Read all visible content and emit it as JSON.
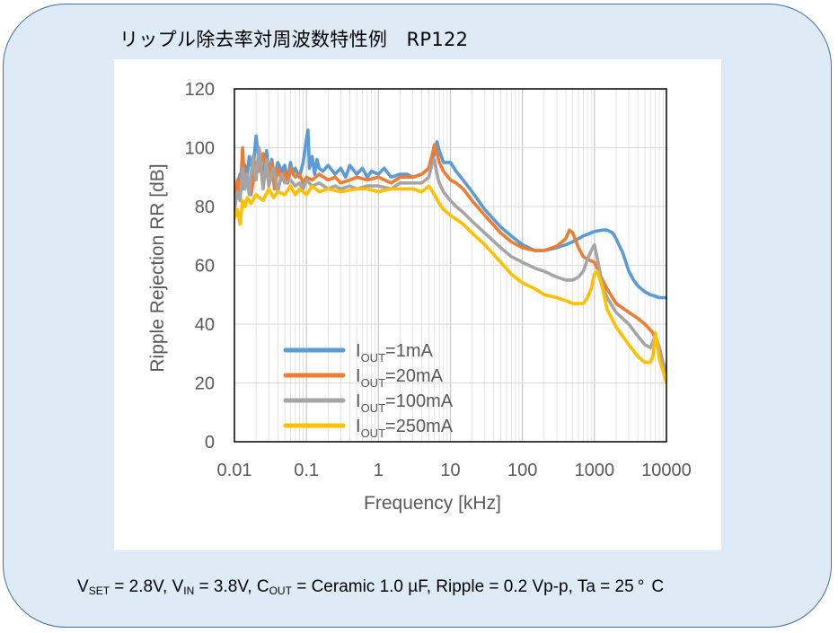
{
  "title": "リップル除去率対周波数特性例　RP122",
  "conditions": {
    "vset_main": "V",
    "vset_sub": "SET",
    "vset_val": " = 2.8V, ",
    "vin_main": "V",
    "vin_sub": "IN",
    "vin_val": " = 3.8V, ",
    "cout_main": "C",
    "cout_sub": "OUT",
    "cout_val": " = Ceramic 1.0 µF, Ripple = 0.2 Vp-p, Ta = 25",
    "deg": "°",
    "unit": "C"
  },
  "chart_data": {
    "type": "line",
    "xlabel": "Frequency [kHz]",
    "ylabel": "Ripple Rejection RR [dB]",
    "x_scale": "log",
    "xlim": [
      0.01,
      10000
    ],
    "ylim": [
      0,
      120
    ],
    "x_ticks": [
      0.01,
      0.1,
      1,
      10,
      100,
      1000,
      10000
    ],
    "x_tick_labels": [
      "0.01",
      "0.1",
      "1",
      "10",
      "100",
      "1000",
      "10000"
    ],
    "y_ticks": [
      0,
      20,
      40,
      60,
      80,
      100,
      120
    ],
    "y_tick_labels": [
      "0",
      "20",
      "40",
      "60",
      "80",
      "100",
      "120"
    ],
    "grid": true,
    "legend_position": "bottom-left",
    "series": [
      {
        "legend_main": "I",
        "legend_sub": "OUT",
        "legend_val": "=1mA",
        "color": "#5b9bd5",
        "x": [
          0.01,
          0.011,
          0.012,
          0.013,
          0.014,
          0.015,
          0.016,
          0.018,
          0.02,
          0.022,
          0.025,
          0.028,
          0.03,
          0.033,
          0.036,
          0.04,
          0.045,
          0.05,
          0.055,
          0.06,
          0.065,
          0.07,
          0.08,
          0.09,
          0.1,
          0.105,
          0.11,
          0.12,
          0.13,
          0.14,
          0.15,
          0.17,
          0.2,
          0.25,
          0.3,
          0.35,
          0.4,
          0.5,
          0.6,
          0.7,
          0.8,
          1,
          1.2,
          1.5,
          2,
          2.5,
          3,
          4,
          5,
          6,
          6.5,
          7,
          8,
          10,
          12,
          15,
          20,
          30,
          50,
          70,
          100,
          150,
          200,
          300,
          400,
          500,
          700,
          1000,
          1300,
          1500,
          1800,
          2000,
          2500,
          3000,
          3500,
          4000,
          5000,
          6000,
          7000,
          8000,
          10000
        ],
        "y": [
          82,
          88,
          91,
          86,
          94,
          90,
          97,
          92,
          104,
          95,
          92,
          99,
          91,
          96,
          90,
          95,
          92,
          94,
          89,
          95,
          91,
          93,
          90,
          95,
          103,
          106,
          93,
          97,
          91,
          96,
          93,
          92,
          94,
          91,
          93,
          90,
          94,
          91,
          93,
          90,
          92,
          91,
          93,
          90,
          91,
          91,
          90,
          91,
          93,
          98,
          102,
          99,
          95,
          95,
          92,
          89,
          85,
          79,
          73,
          70,
          67,
          65,
          65,
          66,
          67,
          68,
          70,
          71.5,
          72,
          72,
          71,
          69,
          64,
          58,
          55,
          53,
          51,
          50,
          49.5,
          49,
          49
        ]
      },
      {
        "legend_main": "I",
        "legend_sub": "OUT",
        "legend_val": "=20mA",
        "color": "#ed7d31",
        "x": [
          0.01,
          0.011,
          0.012,
          0.013,
          0.014,
          0.015,
          0.017,
          0.02,
          0.022,
          0.025,
          0.03,
          0.033,
          0.036,
          0.04,
          0.045,
          0.05,
          0.055,
          0.06,
          0.07,
          0.08,
          0.09,
          0.1,
          0.12,
          0.15,
          0.2,
          0.25,
          0.3,
          0.4,
          0.5,
          0.7,
          1,
          1.5,
          2,
          3,
          4,
          5,
          5.5,
          6,
          6.5,
          7,
          8,
          10,
          12,
          15,
          20,
          30,
          50,
          70,
          100,
          150,
          200,
          300,
          400,
          450,
          500,
          600,
          700,
          800,
          1000,
          1300,
          1500,
          2000,
          3000,
          4000,
          5000,
          6000,
          6500,
          7000,
          8000,
          10000
        ],
        "y": [
          82,
          89,
          84,
          100,
          86,
          90,
          84,
          95,
          92,
          98,
          88,
          95,
          86,
          93,
          89,
          92,
          88,
          93,
          90,
          91,
          88,
          90,
          89,
          91,
          89,
          90,
          88,
          89,
          90,
          89,
          90,
          88,
          90,
          90,
          91,
          93,
          97,
          101,
          98,
          95,
          92,
          89,
          88,
          86,
          82,
          77,
          71,
          68,
          66,
          65,
          65,
          66.5,
          69,
          72,
          71,
          66,
          63,
          62,
          61,
          55,
          52,
          47,
          44,
          42,
          40,
          38,
          37,
          35,
          30,
          24
        ]
      },
      {
        "legend_main": "I",
        "legend_sub": "OUT",
        "legend_val": "=100mA",
        "color": "#a5a5a5",
        "x": [
          0.01,
          0.011,
          0.012,
          0.013,
          0.014,
          0.015,
          0.016,
          0.018,
          0.02,
          0.022,
          0.025,
          0.028,
          0.03,
          0.035,
          0.04,
          0.045,
          0.05,
          0.06,
          0.07,
          0.08,
          0.09,
          0.1,
          0.12,
          0.15,
          0.2,
          0.25,
          0.3,
          0.4,
          0.5,
          0.7,
          1,
          1.5,
          2,
          3,
          4,
          5,
          5.5,
          6,
          6.5,
          7,
          8,
          10,
          12,
          15,
          20,
          30,
          50,
          70,
          100,
          150,
          200,
          300,
          400,
          500,
          600,
          700,
          800,
          900,
          1000,
          1100,
          1300,
          1500,
          2000,
          3000,
          4000,
          5000,
          6000,
          6500,
          7000,
          8000,
          10000
        ],
        "y": [
          79,
          85,
          82,
          93,
          86,
          91,
          84,
          97,
          89,
          100,
          86,
          96,
          87,
          93,
          85,
          91,
          88,
          89,
          87,
          88,
          86,
          89,
          87,
          88,
          86,
          87,
          86,
          87,
          86,
          87,
          87,
          86,
          88,
          88,
          88,
          90,
          94,
          96,
          91,
          88,
          85,
          82,
          80,
          78,
          75,
          71,
          66,
          63,
          61,
          59,
          58,
          56,
          55,
          55,
          56,
          58,
          62,
          65,
          67,
          62,
          53,
          49,
          44,
          40,
          36,
          33,
          32,
          34,
          36,
          32,
          22
        ]
      },
      {
        "legend_main": "I",
        "legend_sub": "OUT",
        "legend_val": "=250mA",
        "color": "#ffc000",
        "x": [
          0.01,
          0.011,
          0.012,
          0.013,
          0.014,
          0.015,
          0.017,
          0.02,
          0.025,
          0.03,
          0.035,
          0.04,
          0.05,
          0.06,
          0.07,
          0.08,
          0.1,
          0.12,
          0.15,
          0.2,
          0.3,
          0.5,
          0.7,
          1,
          1.5,
          2,
          3,
          4,
          5,
          6,
          7,
          8,
          10,
          15,
          20,
          30,
          50,
          70,
          100,
          150,
          200,
          300,
          400,
          500,
          600,
          700,
          800,
          900,
          1000,
          1100,
          1300,
          1500,
          2000,
          3000,
          4000,
          5000,
          6000,
          6500,
          7000,
          7500,
          8000,
          9000,
          10000
        ],
        "y": [
          76,
          79,
          74,
          82,
          80,
          83,
          81,
          84,
          82,
          86,
          83,
          85,
          84,
          87,
          84,
          86,
          84,
          87,
          85,
          86,
          85,
          86,
          86,
          85,
          86,
          86,
          86,
          85,
          87,
          84,
          81,
          79,
          77,
          74,
          71,
          67,
          61,
          57,
          54,
          52,
          50,
          49,
          48,
          47,
          47,
          47,
          49,
          52,
          57,
          58,
          52,
          45,
          39,
          33,
          29,
          27,
          27,
          29,
          37,
          33,
          28,
          24,
          20
        ]
      }
    ]
  }
}
